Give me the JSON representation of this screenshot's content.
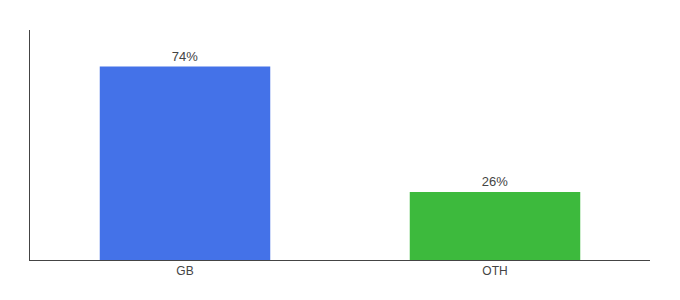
{
  "chart_data": {
    "type": "bar",
    "categories": [
      "GB",
      "OTH"
    ],
    "values": [
      74,
      26
    ],
    "value_labels": [
      "74%",
      "26%"
    ],
    "colors": [
      "#4472e8",
      "#3dba3d"
    ],
    "ylim": [
      0,
      88
    ],
    "data_labels": true,
    "tick_labels": "x",
    "grid": false
  }
}
